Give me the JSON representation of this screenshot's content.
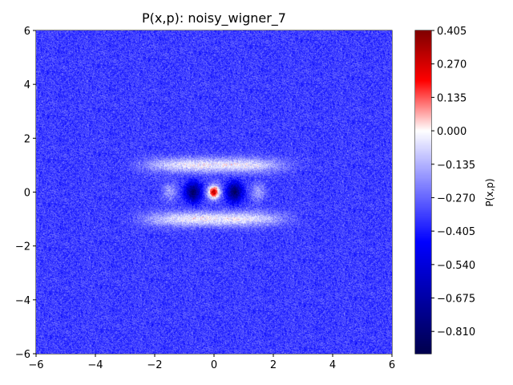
{
  "chart_data": {
    "type": "heatmap",
    "title": "P(x,p): noisy_wigner_7",
    "xlabel": "",
    "ylabel": "",
    "xlim": [
      -6,
      6
    ],
    "ylim": [
      -6,
      6
    ],
    "x_ticks": [
      "−6",
      "−4",
      "−2",
      "0",
      "2",
      "4",
      "6"
    ],
    "y_ticks": [
      "−6",
      "−4",
      "−2",
      "0",
      "2",
      "4",
      "6"
    ],
    "x_tick_values": [
      -6,
      -4,
      -2,
      0,
      2,
      4,
      6
    ],
    "y_tick_values": [
      -6,
      -4,
      -2,
      0,
      2,
      4,
      6
    ],
    "grid": false,
    "colormap": "seismic",
    "colorbar": {
      "label": "P(x,p)",
      "min": -0.9,
      "max": 0.405,
      "ticks": [
        "0.405",
        "0.270",
        "0.135",
        "0.000",
        "−0.135",
        "−0.270",
        "−0.405",
        "−0.540",
        "−0.675",
        "−0.810"
      ],
      "tick_values": [
        0.405,
        0.27,
        0.135,
        0.0,
        -0.135,
        -0.27,
        -0.405,
        -0.54,
        -0.675,
        -0.81
      ]
    },
    "field": {
      "background": -0.34,
      "central_peak": {
        "x": 0,
        "p": 0,
        "value": 0.3
      },
      "negative_lobes": [
        {
          "x": -0.7,
          "p": 0,
          "value": -0.82
        },
        {
          "x": 0.7,
          "p": 0,
          "value": -0.82
        }
      ],
      "positive_bands": [
        {
          "p": 1.0,
          "value": -0.03
        },
        {
          "p": -1.0,
          "value": -0.03
        }
      ],
      "side_lobes": [
        {
          "x": -1.5,
          "value": -0.1
        },
        {
          "x": 1.5,
          "value": -0.1
        }
      ],
      "noise_amplitude": 0.09
    }
  }
}
